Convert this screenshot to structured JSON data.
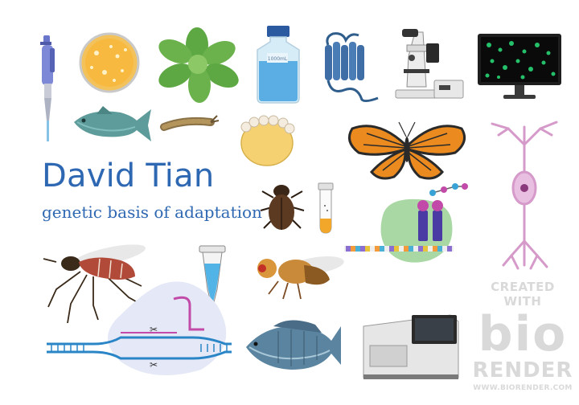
{
  "title": "David Tian",
  "subtitle": "genetic basis of adaptation",
  "watermark": {
    "line1": "CREATED WITH",
    "line2": "bio",
    "line3": "RENDER",
    "line4": "WWW.BIORENDER.COM"
  },
  "bottle_label": "1000mL",
  "colors": {
    "title": "#2f68b2",
    "watermark": "#d9d9d9"
  },
  "icons": [
    "pipette-icon",
    "petri-dish-icon",
    "plant-rosette-icon",
    "media-bottle-icon",
    "membrane-protein-icon",
    "microscope-icon",
    "monitor-cells-icon",
    "fish-icon",
    "larva-icon",
    "embryo-icon",
    "butterfly-icon",
    "neuron-icon",
    "beetle-icon",
    "sample-tube-icon",
    "transcription-complex-icon",
    "mosquito-icon",
    "microcentrifuge-tube-icon",
    "fruit-fly-icon",
    "crispr-dna-icon",
    "tilapia-icon",
    "sequencer-icon"
  ]
}
